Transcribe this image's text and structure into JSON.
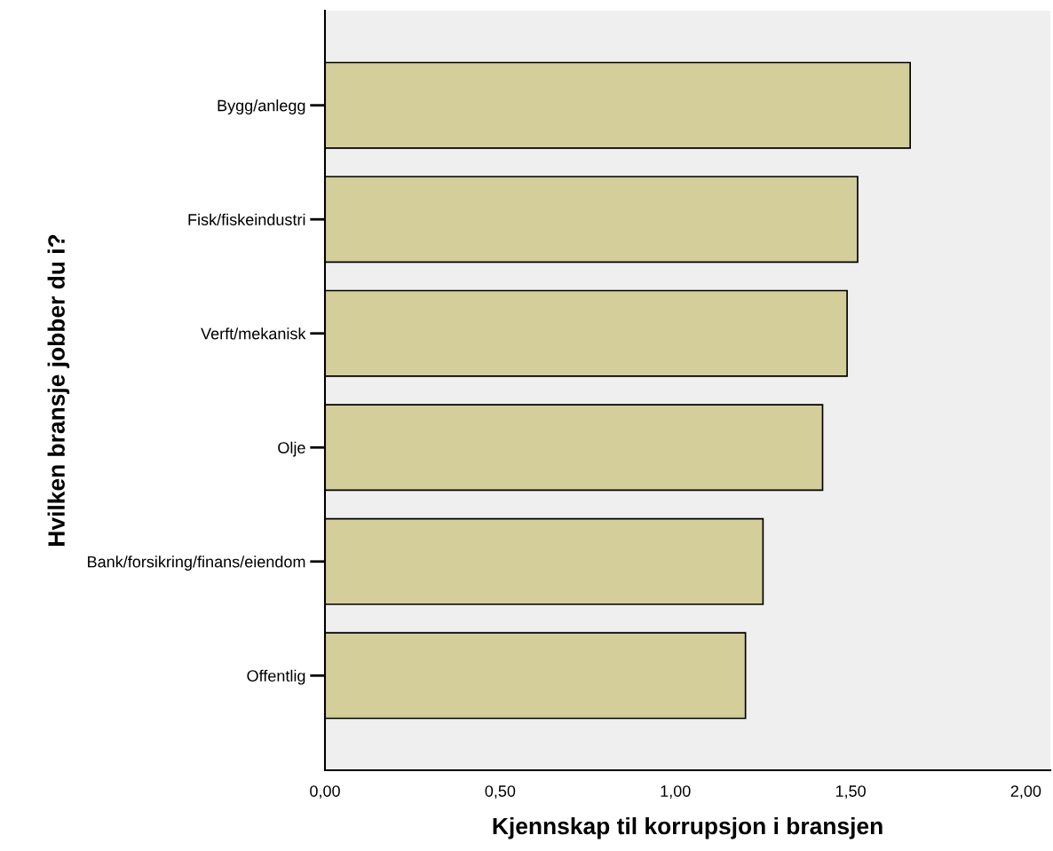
{
  "chart_data": {
    "type": "bar",
    "orientation": "horizontal",
    "xlabel": "Kjennskap til korrupsjon i bransjen",
    "ylabel": "Hvilken bransje jobber du i?",
    "categories": [
      "Bygg/anlegg",
      "Fisk/fiskeindustri",
      "Verft/mekanisk",
      "Olje",
      "Bank/forsikring/finans/eiendom",
      "Offentlig"
    ],
    "values": [
      1.67,
      1.52,
      1.49,
      1.42,
      1.25,
      1.2
    ],
    "color": "#d3ce9a",
    "xlim": [
      0,
      2.07
    ],
    "xticks": [
      {
        "value": 0,
        "label": "0,00"
      },
      {
        "value": 0.5,
        "label": "0,50"
      },
      {
        "value": 1,
        "label": "1,00"
      },
      {
        "value": 1.5,
        "label": "1,50"
      },
      {
        "value": 2,
        "label": "2,00"
      }
    ],
    "grid": false
  }
}
